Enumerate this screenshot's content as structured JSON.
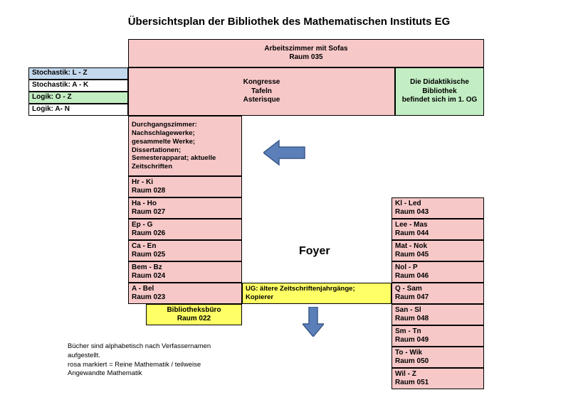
{
  "title": "Übersichtsplan der Bibliothek des Mathematischen Instituts EG",
  "colors": {
    "pink": "#f7c8c8",
    "green": "#c3edc3",
    "blue": "#c3d8ed",
    "yellow": "#ffff66",
    "white": "#ffffff",
    "border": "#000000",
    "arrow_fill": "#5b7fb8",
    "arrow_stroke": "#3a5a8a"
  },
  "top_row": {
    "arbeitszimmer": {
      "line1": "Arbeitszimmer mit Sofas",
      "line2": "Raum 035"
    }
  },
  "second_row": {
    "kongresse": {
      "line1": "Kongresse",
      "line2": "Tafeln",
      "line3": "Asterisque"
    },
    "didaktik": {
      "line1": "Die Didaktikische",
      "line2": "Bibliothek",
      "line3": "befindet sich im 1. OG"
    }
  },
  "left_legend": {
    "r1": "Stochastik:  L - Z",
    "r2": "Stochastik:  A - K",
    "r3": "Logik: O - Z",
    "r4": "Logik: A- N"
  },
  "durchgang": {
    "line1": "Durchgangszimmer:",
    "line2": "Nachschlagewerke;",
    "line3": "gesammelte Werke;",
    "line4": "Dissertationen;",
    "line5": "Semesterapparat; aktuelle",
    "line6": "Zeitschriften"
  },
  "left_rooms": [
    {
      "range": "Hr - Ki",
      "room": "Raum 028"
    },
    {
      "range": "Ha - Ho",
      "room": "Raum 027"
    },
    {
      "range": "Ep - G",
      "room": "Raum 026"
    },
    {
      "range": "Ca - En",
      "room": "Raum 025"
    },
    {
      "range": "Bem - Bz",
      "room": "Raum 024"
    },
    {
      "range": "A - Bel",
      "room": "Raum 023"
    }
  ],
  "biblio_buero": {
    "line1": "Bibliotheksbüro",
    "line2": "Raum 022"
  },
  "ug": {
    "line1": "UG: ältere Zeitschriftenjahrgänge;",
    "line2": "Kopierer"
  },
  "right_rooms": [
    {
      "range": "Kl - Led",
      "room": "Raum 043"
    },
    {
      "range": " Lee - Mas",
      "room": "Raum 044"
    },
    {
      "range": "Mat - Nok",
      "room": "Raum 045"
    },
    {
      "range": "Nol - P",
      "room": "Raum 046"
    },
    {
      "range": " Q - Sam",
      "room": "Raum 047"
    },
    {
      "range": "San - Sl",
      "room": "Raum 048"
    },
    {
      "range": "Sm - Tn",
      "room": "Raum 049"
    },
    {
      "range": "To - Wik",
      "room": "Raum 050"
    },
    {
      "range": "Wil - Z",
      "room": "Raum 051"
    }
  ],
  "foyer": "Foyer",
  "footnote": {
    "line1": "Bücher sind alphabetisch nach Verfassernamen",
    "line2": "aufgestellt.",
    "line3": "rosa markiert = Reine Mathematik / teilweise",
    "line4": "Angewandte Mathematik"
  },
  "layout": {
    "title_fontsize": 15,
    "box_fontsize": 10,
    "foyer_fontsize": 16,
    "footnote_fontsize": 9.5,
    "left_room_height": 30,
    "right_room_height": 30
  }
}
